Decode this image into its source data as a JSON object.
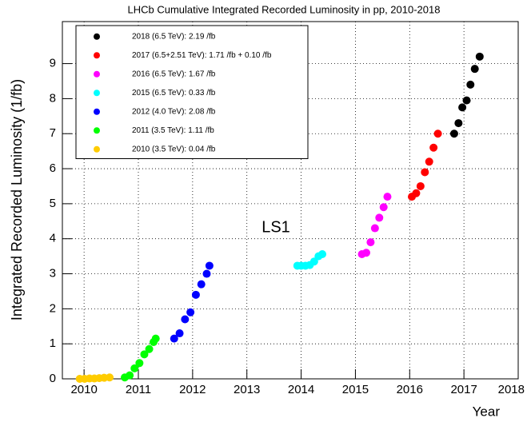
{
  "chart_data": {
    "type": "scatter",
    "title": "LHCb Cumulative Integrated Recorded Luminosity in pp, 2010-2018",
    "x_label": "Year",
    "y_label": "Integrated Recorded Luminosity (1/fb)",
    "annotation": "LS1",
    "xlim": [
      2009.6,
      2018.0
    ],
    "xticks": [
      2010,
      2011,
      2012,
      2013,
      2014,
      2015,
      2016,
      2017,
      2018
    ],
    "ylim": [
      0,
      10.2
    ],
    "yticks": [
      0,
      1,
      2,
      3,
      4,
      5,
      6,
      7,
      8,
      9
    ],
    "grid": true,
    "legend": "upper left",
    "series": [
      {
        "name": "2018 (6.5 TeV): 2.19 /fb",
        "color": "#000000",
        "x": [
          2016.82,
          2016.9,
          2016.97,
          2017.05,
          2017.12,
          2017.2,
          2017.29
        ],
        "y": [
          7.0,
          7.3,
          7.75,
          7.95,
          8.4,
          8.85,
          9.2
        ]
      },
      {
        "name": "2017 (6.5+2.51 TeV): 1.71 /fb + 0.10 /fb",
        "color": "#ff0000",
        "x": [
          2016.04,
          2016.12,
          2016.2,
          2016.28,
          2016.36,
          2016.44,
          2016.52
        ],
        "y": [
          5.2,
          5.3,
          5.5,
          5.9,
          6.2,
          6.6,
          7.0
        ]
      },
      {
        "name": "2016 (6.5 TeV): 1.67 /fb",
        "color": "#ff00ff",
        "x": [
          2015.12,
          2015.2,
          2015.28,
          2015.36,
          2015.44,
          2015.52,
          2015.59
        ],
        "y": [
          3.56,
          3.6,
          3.9,
          4.3,
          4.6,
          4.9,
          5.2
        ]
      },
      {
        "name": "2015 (6.5 TeV): 0.33 /fb",
        "color": "#00ffff",
        "x": [
          2013.93,
          2014.0,
          2014.08,
          2014.16,
          2014.24,
          2014.32,
          2014.39
        ],
        "y": [
          3.23,
          3.23,
          3.23,
          3.25,
          3.35,
          3.5,
          3.56
        ]
      },
      {
        "name": "2012 (4.0 TeV): 2.08 /fb",
        "color": "#0000ff",
        "x": [
          2011.66,
          2011.76,
          2011.86,
          2011.96,
          2012.06,
          2012.16,
          2012.26,
          2012.31
        ],
        "y": [
          1.15,
          1.3,
          1.7,
          1.9,
          2.4,
          2.7,
          3.0,
          3.23
        ]
      },
      {
        "name": "2011 (3.5 TeV): 1.11 /fb",
        "color": "#00ff00",
        "x": [
          2010.75,
          2010.84,
          2010.93,
          2011.02,
          2011.11,
          2011.2,
          2011.28,
          2011.32
        ],
        "y": [
          0.04,
          0.1,
          0.3,
          0.45,
          0.7,
          0.85,
          1.05,
          1.15
        ]
      },
      {
        "name": "2010 (3.5 TeV): 0.04 /fb",
        "color": "#ffcc00",
        "x": [
          2009.92,
          2010.01,
          2010.1,
          2010.19,
          2010.28,
          2010.37,
          2010.47
        ],
        "y": [
          0,
          0,
          0.01,
          0.01,
          0.02,
          0.03,
          0.04
        ]
      }
    ]
  }
}
